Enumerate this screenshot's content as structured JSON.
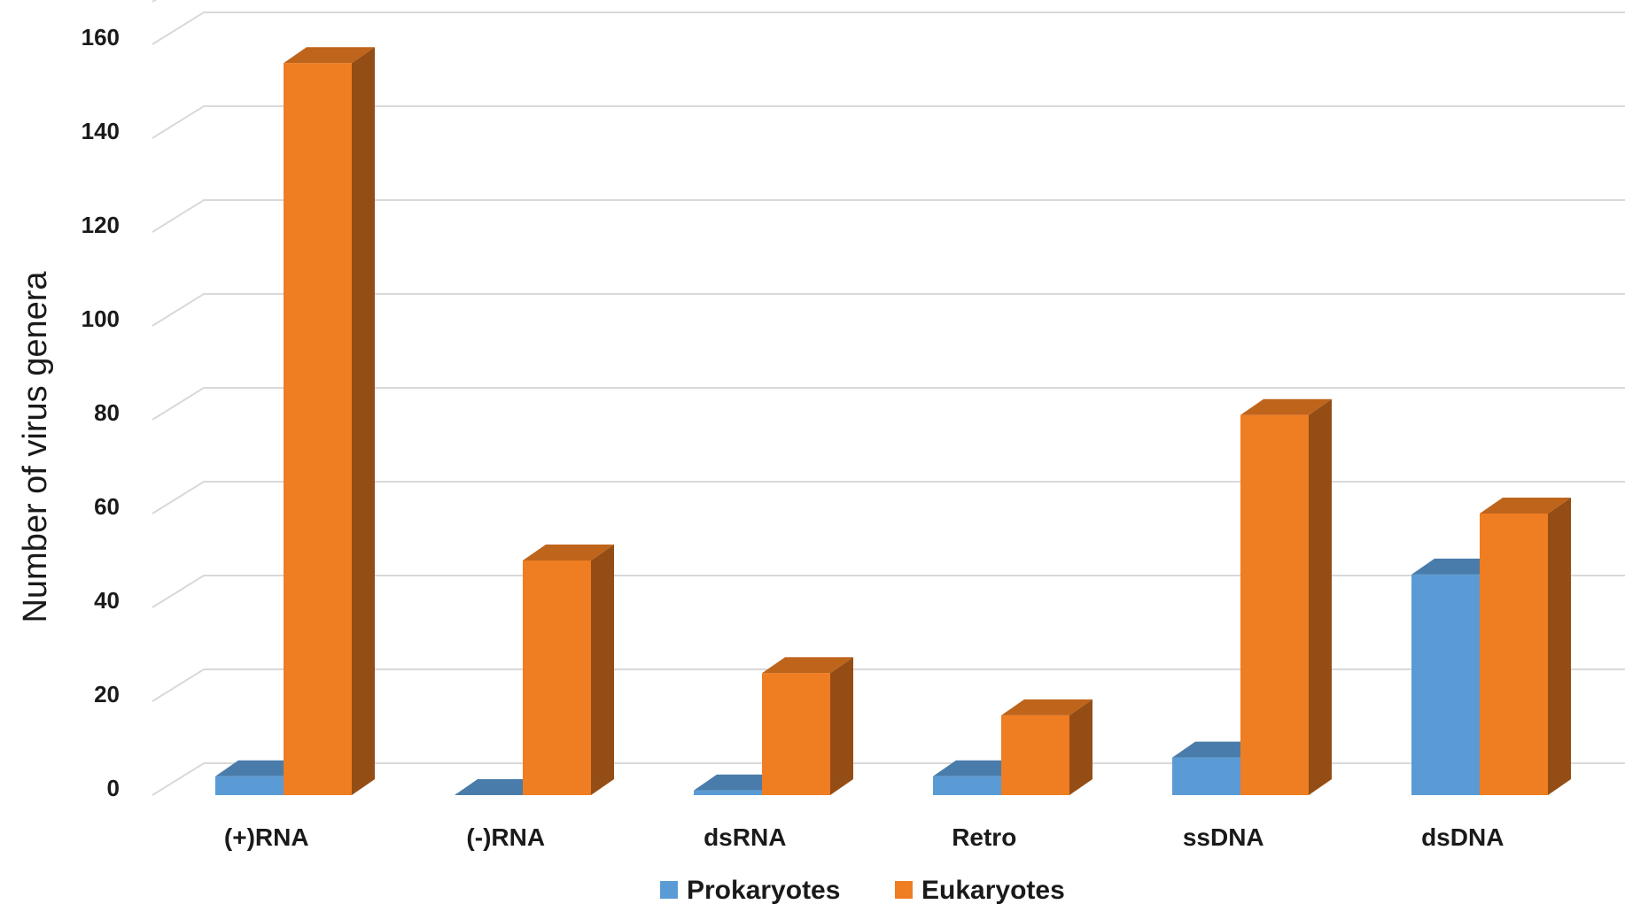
{
  "chart_data": {
    "type": "bar",
    "categories": [
      "(+)RNA",
      "(-)RNA",
      "dsRNA",
      "Retro",
      "ssDNA",
      "dsDNA"
    ],
    "series": [
      {
        "name": "Prokaryotes",
        "color": "#5b9bd5",
        "values": [
          4,
          0,
          1,
          4,
          8,
          47
        ]
      },
      {
        "name": "Eukaryotes",
        "color": "#ef7d22",
        "values": [
          156,
          50,
          26,
          17,
          81,
          60
        ]
      }
    ],
    "ylabel": "Number of virus genera",
    "yticks": [
      0,
      20,
      40,
      60,
      80,
      100,
      120,
      140,
      160
    ],
    "ylim": [
      0,
      160
    ],
    "grid": true,
    "legend_position": "bottom"
  }
}
